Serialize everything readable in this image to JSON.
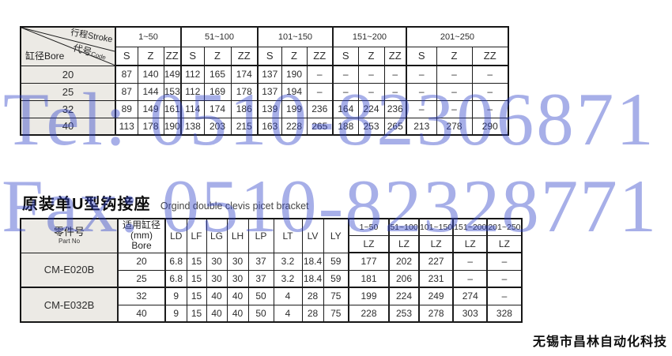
{
  "watermarks": {
    "tel": "Tel: 0510-82306871",
    "fax": "Fax: 0510-82328771",
    "color": "#a0aae8"
  },
  "stroke_table": {
    "corner": {
      "stroke_label": "行程Stroke",
      "code_label": "代号",
      "code_sub": "Code",
      "bore_label": "缸径Bore"
    },
    "stroke_ranges": [
      "1~50",
      "51~100",
      "101~150",
      "151~200",
      "201~250"
    ],
    "sub_headers": [
      "S",
      "Z",
      "ZZ"
    ],
    "rows": [
      {
        "bore": "20",
        "values": [
          "87",
          "140",
          "149",
          "112",
          "165",
          "174",
          "137",
          "190",
          "–",
          "–",
          "–",
          "–",
          "–",
          "–",
          "–"
        ]
      },
      {
        "bore": "25",
        "values": [
          "87",
          "144",
          "153",
          "112",
          "169",
          "178",
          "137",
          "194",
          "–",
          "–",
          "–",
          "–",
          "–",
          "–",
          "–"
        ]
      },
      {
        "bore": "32",
        "values": [
          "89",
          "149",
          "161",
          "114",
          "174",
          "186",
          "139",
          "199",
          "236",
          "164",
          "224",
          "236",
          "–",
          "–",
          "–"
        ]
      },
      {
        "bore": "40",
        "values": [
          "113",
          "178",
          "190",
          "138",
          "203",
          "215",
          "163",
          "228",
          "265",
          "188",
          "253",
          "265",
          "213",
          "278",
          "290"
        ]
      }
    ]
  },
  "section": {
    "title_cn": "原装单U型钩接座",
    "title_en": "Orgind double clevis picet bracket"
  },
  "bracket_table": {
    "part_header": {
      "label": "零件号",
      "sub": "Part No"
    },
    "bore_header": {
      "line1": "适用缸径",
      "line2": "(mm)",
      "line3": "Bore"
    },
    "dim_headers": [
      "LD",
      "LF",
      "LG",
      "LH",
      "LP",
      "LT",
      "LV",
      "LY"
    ],
    "stroke_ranges": [
      "1~50",
      "51~100",
      "101~150",
      "151~200",
      "201~250"
    ],
    "lz_label": "LZ",
    "groups": [
      {
        "part_no": "CM-E020B",
        "rows": [
          {
            "bore": "20",
            "dims": [
              "6.8",
              "15",
              "30",
              "30",
              "37",
              "3.2",
              "18.4",
              "59"
            ],
            "lz": [
              "177",
              "202",
              "227",
              "–",
              "–"
            ]
          },
          {
            "bore": "25",
            "dims": [
              "6.8",
              "15",
              "30",
              "30",
              "37",
              "3.2",
              "18.4",
              "59"
            ],
            "lz": [
              "181",
              "206",
              "231",
              "–",
              "–"
            ]
          }
        ]
      },
      {
        "part_no": "CM-E032B",
        "rows": [
          {
            "bore": "32",
            "dims": [
              "9",
              "15",
              "40",
              "40",
              "50",
              "4",
              "28",
              "75"
            ],
            "lz": [
              "199",
              "224",
              "249",
              "274",
              "–"
            ]
          },
          {
            "bore": "40",
            "dims": [
              "9",
              "15",
              "40",
              "40",
              "50",
              "4",
              "28",
              "75"
            ],
            "lz": [
              "228",
              "253",
              "278",
              "303",
              "328"
            ]
          }
        ]
      }
    ]
  },
  "footer": {
    "company": "无锡市昌林自动化科技"
  }
}
